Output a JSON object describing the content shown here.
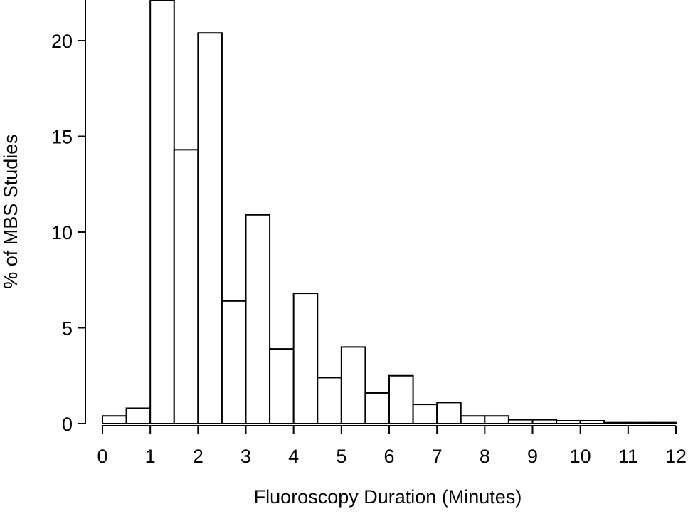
{
  "chart_data": {
    "type": "bar",
    "xlabel": "Fluoroscopy Duration (Minutes)",
    "ylabel": "% of MBS Studies",
    "xlim": [
      0,
      12
    ],
    "ylim": [
      0,
      22
    ],
    "grid": false,
    "bin_width": 0.5,
    "x_ticks": [
      "0",
      "1",
      "2",
      "3",
      "4",
      "5",
      "6",
      "7",
      "8",
      "9",
      "10",
      "11",
      "12"
    ],
    "y_ticks": [
      "0",
      "5",
      "10",
      "15",
      "20"
    ],
    "bins": [
      {
        "start": 0.0,
        "value": 0.4
      },
      {
        "start": 0.5,
        "value": 0.8
      },
      {
        "start": 1.0,
        "value": 22.1
      },
      {
        "start": 1.5,
        "value": 14.3
      },
      {
        "start": 2.0,
        "value": 20.4
      },
      {
        "start": 2.5,
        "value": 6.4
      },
      {
        "start": 3.0,
        "value": 10.9
      },
      {
        "start": 3.5,
        "value": 3.9
      },
      {
        "start": 4.0,
        "value": 6.8
      },
      {
        "start": 4.5,
        "value": 2.4
      },
      {
        "start": 5.0,
        "value": 4.0
      },
      {
        "start": 5.5,
        "value": 1.6
      },
      {
        "start": 6.0,
        "value": 2.5
      },
      {
        "start": 6.5,
        "value": 1.0
      },
      {
        "start": 7.0,
        "value": 1.1
      },
      {
        "start": 7.5,
        "value": 0.4
      },
      {
        "start": 8.0,
        "value": 0.4
      },
      {
        "start": 8.5,
        "value": 0.2
      },
      {
        "start": 9.0,
        "value": 0.2
      },
      {
        "start": 9.5,
        "value": 0.15
      },
      {
        "start": 10.0,
        "value": 0.15
      },
      {
        "start": 10.5,
        "value": 0.05
      },
      {
        "start": 11.0,
        "value": 0.05
      },
      {
        "start": 11.5,
        "value": 0.05
      }
    ]
  }
}
